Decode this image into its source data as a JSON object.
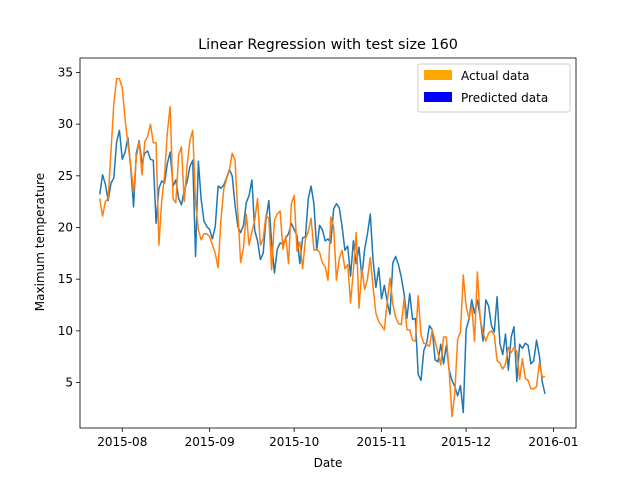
{
  "chart_data": {
    "type": "line",
    "title": "Linear Regression with test size 160",
    "xlabel": "Date",
    "ylabel": "Maximum temperature",
    "xlim": [
      "2015-07-17",
      "2016-01-09"
    ],
    "ylim": [
      0.6,
      36.4
    ],
    "x_ticks": [
      "2015-08-01",
      "2015-09-01",
      "2015-10-01",
      "2015-11-01",
      "2015-12-01",
      "2016-01-01"
    ],
    "x_tick_labels": [
      "2015-08",
      "2015-09",
      "2015-10",
      "2015-11",
      "2015-12",
      "2016-01"
    ],
    "y_ticks": [
      5,
      10,
      15,
      20,
      25,
      30,
      35
    ],
    "grid": false,
    "legend": {
      "position": "upper right",
      "entries": [
        {
          "label": "Actual data",
          "color": "#ffa500"
        },
        {
          "label": "Predicted data",
          "color": "#0000ff"
        }
      ]
    },
    "x_start": "2015-07-24",
    "series": [
      {
        "color": "#1f77b4",
        "values": [
          23.2,
          25.1,
          24.2,
          22.6,
          24.3,
          24.8,
          28.3,
          29.4,
          26.6,
          27.3,
          28.7,
          25.8,
          22.0,
          27.2,
          28.4,
          26.2,
          27.2,
          27.4,
          26.6,
          26.5,
          20.4,
          23.8,
          24.5,
          24.3,
          26.2,
          27.3,
          24.0,
          24.6,
          22.8,
          22.2,
          23.6,
          24.4,
          25.9,
          26.5,
          17.2,
          26.4,
          22.7,
          20.6,
          20.1,
          19.8,
          18.9,
          20.1,
          24.0,
          23.8,
          24.1,
          24.8,
          25.6,
          25.0,
          22.2,
          20.1,
          19.5,
          20.2,
          22.4,
          23.1,
          24.6,
          19.7,
          18.7,
          16.9,
          17.5,
          20.8,
          22.6,
          18.5,
          15.6,
          17.9,
          18.5,
          18.4,
          19.0,
          19.4,
          20.4,
          19.8,
          19.2,
          16.5,
          19.0,
          19.1,
          22.8,
          24.0,
          22.3,
          17.8,
          20.2,
          19.8,
          18.7,
          18.9,
          18.5,
          21.8,
          22.3,
          21.9,
          20.1,
          17.8,
          18.2,
          15.3,
          18.7,
          16.5,
          18.1,
          15.2,
          17.9,
          19.4,
          21.3,
          16.8,
          14.2,
          16.1,
          13.1,
          14.4,
          12.8,
          11.6,
          16.6,
          17.2,
          16.4,
          15.2,
          13.6,
          11.2,
          13.6,
          11.1,
          11.2,
          5.8,
          5.2,
          8.1,
          8.8,
          10.5,
          10.1,
          7.2,
          7.0,
          8.7,
          6.8,
          8.6,
          6.2,
          5.2,
          4.6,
          3.7,
          4.7,
          2.1,
          10.1,
          11.1,
          13.0,
          11.7,
          13.0,
          11.3,
          9.0,
          13.0,
          12.4,
          10.5,
          9.9,
          13.3,
          8.8,
          7.7,
          9.7,
          6.2,
          9.4,
          10.4,
          5.1,
          8.7,
          8.3,
          8.8,
          8.6,
          6.8,
          7.1,
          9.1,
          7.6,
          5.1,
          3.9
        ]
      },
      {
        "color": "#ff7f0e",
        "values": [
          22.8,
          21.1,
          22.5,
          22.8,
          27.4,
          32.0,
          34.4,
          34.4,
          33.5,
          30.5,
          28.1,
          26.0,
          23.4,
          26.8,
          28.3,
          25.1,
          28.3,
          28.8,
          30.0,
          28.2,
          28.2,
          18.3,
          22.6,
          25.0,
          29.2,
          31.7,
          22.8,
          22.4,
          27.0,
          27.8,
          22.5,
          26.0,
          28.4,
          29.4,
          22.4,
          19.8,
          18.8,
          19.4,
          19.4,
          19.1,
          18.3,
          17.5,
          16.1,
          20.7,
          23.7,
          24.7,
          25.5,
          27.2,
          26.5,
          21.5,
          16.6,
          18.0,
          21.3,
          18.3,
          19.6,
          20.7,
          22.8,
          18.3,
          18.9,
          21.2,
          20.9,
          15.9,
          20.7,
          21.3,
          21.6,
          17.9,
          19.1,
          16.5,
          22.3,
          23.1,
          17.7,
          18.6,
          16.0,
          18.9,
          19.6,
          20.9,
          17.8,
          17.9,
          17.6,
          16.6,
          16.2,
          14.9,
          21.0,
          20.1,
          14.9,
          17.0,
          17.8,
          16.0,
          16.4,
          12.7,
          15.8,
          19.5,
          12.2,
          16.0,
          14.0,
          15.0,
          17.1,
          14.2,
          11.7,
          10.9,
          10.5,
          10.1,
          12.8,
          15.1,
          12.6,
          11.3,
          10.7,
          10.6,
          13.1,
          10.1,
          10.1,
          9.1,
          9.0,
          13.4,
          9.6,
          8.8,
          8.7,
          8.5,
          10.1,
          9.0,
          7.9,
          6.7,
          9.4,
          9.4,
          6.1,
          1.7,
          4.0,
          9.2,
          9.9,
          15.4,
          12.4,
          11.2,
          12.4,
          9.0,
          15.7,
          11.2,
          9.8,
          9.0,
          9.8,
          10.0,
          9.6,
          7.1,
          6.9,
          6.3,
          6.8,
          8.4,
          7.9,
          8.4,
          8.0,
          5.3,
          7.3,
          5.4,
          5.2,
          4.4,
          4.4,
          4.6,
          6.9,
          5.5,
          5.6
        ]
      }
    ]
  }
}
